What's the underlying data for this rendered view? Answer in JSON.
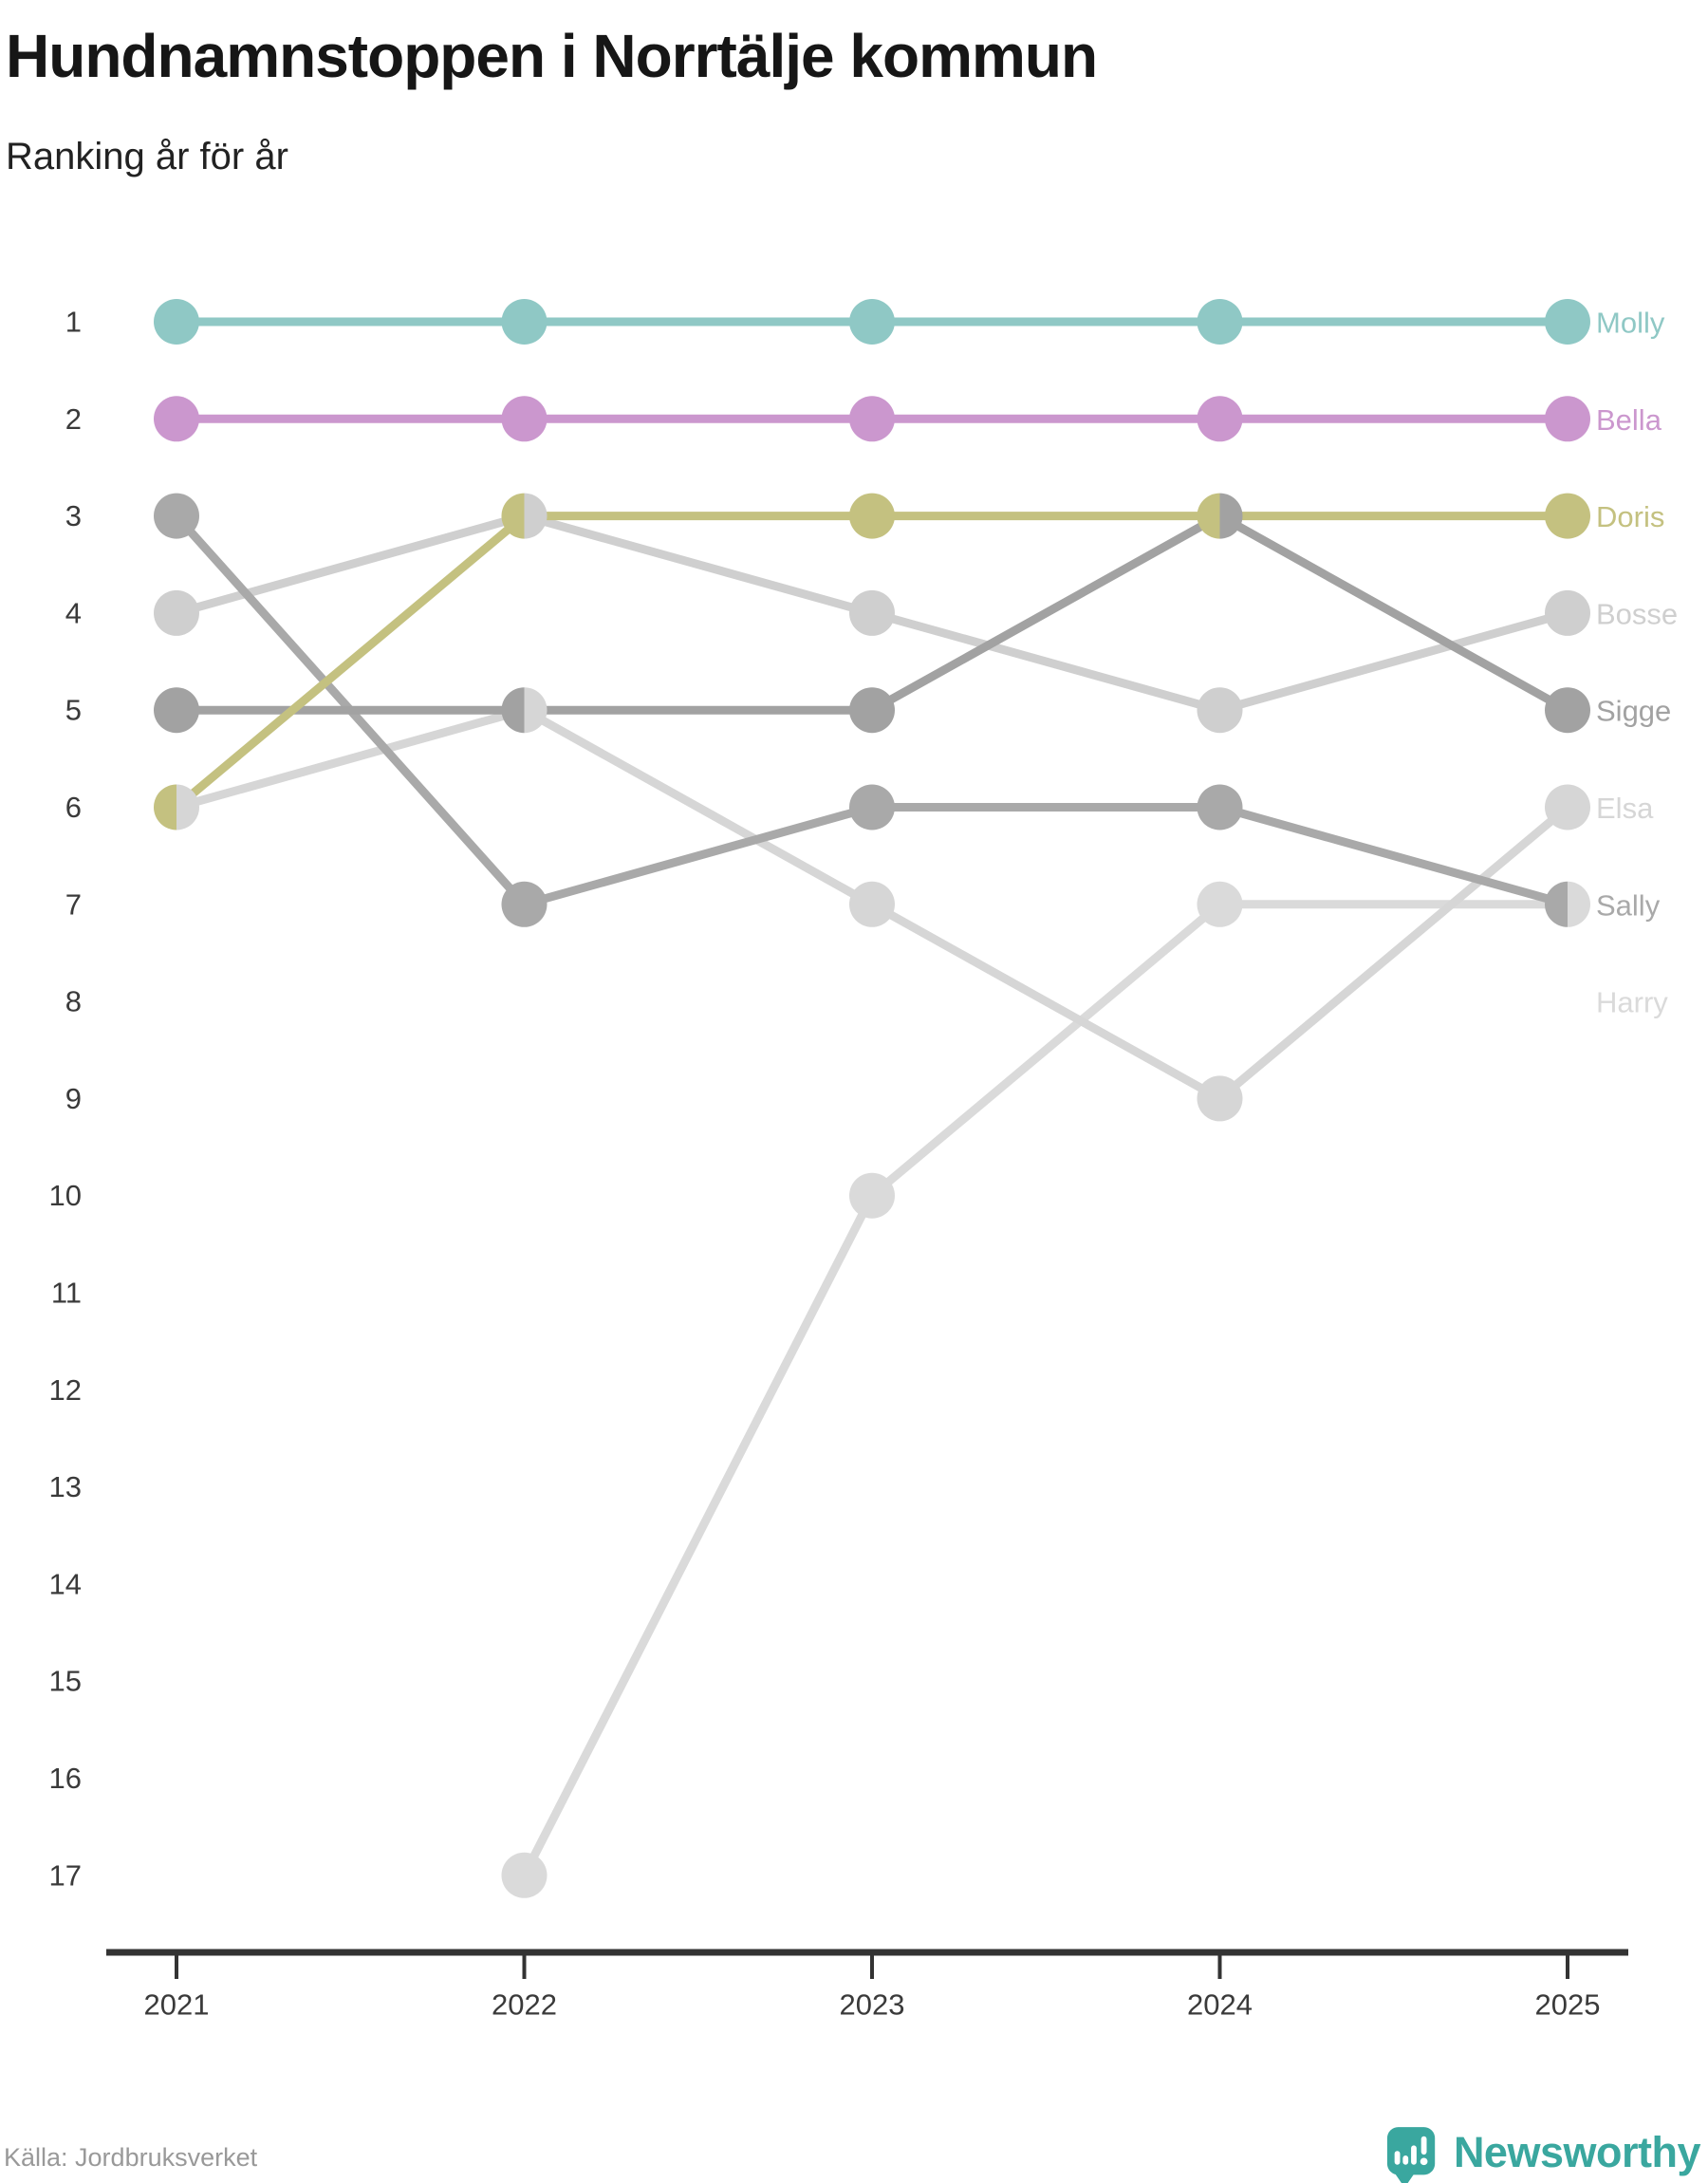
{
  "header": {
    "title": "Hundnamnstoppen i Norrtälje kommun",
    "subtitle": "Ranking år för år"
  },
  "footer": {
    "source": "Källa: Jordbruksverket",
    "brand_name": "Newsworthy",
    "brand_color": "#3aa79f"
  },
  "chart_data": {
    "type": "line",
    "variant": "bump-ranking",
    "x_labels": [
      "2021",
      "2022",
      "2023",
      "2024",
      "2025"
    ],
    "y_ticks": [
      1,
      2,
      3,
      4,
      5,
      6,
      7,
      8,
      9,
      10,
      11,
      12,
      13,
      14,
      15,
      16,
      17
    ],
    "y_axis_inverted_ranking": true,
    "grid": "off",
    "legend_position": "right-end-labels",
    "axis_color": "#333333",
    "tick_label_color": "#3a3a3a",
    "series": [
      {
        "name": "Molly",
        "color": "#8fc8c5",
        "ranks": [
          1,
          1,
          1,
          1,
          1
        ],
        "label_rank": 1
      },
      {
        "name": "Bella",
        "color": "#cb97ce",
        "ranks": [
          2,
          2,
          2,
          2,
          2
        ],
        "label_rank": 2
      },
      {
        "name": "Doris",
        "color": "#c4c180",
        "ranks": [
          6,
          3,
          3,
          3,
          3
        ],
        "label_rank": 3
      },
      {
        "name": "Bosse",
        "color": "#cfcfcf",
        "ranks": [
          4,
          3,
          4,
          5,
          4
        ],
        "label_rank": 4
      },
      {
        "name": "Sigge",
        "color": "#a2a2a2",
        "ranks": [
          5,
          5,
          5,
          3,
          5
        ],
        "label_rank": 5
      },
      {
        "name": "Elsa",
        "color": "#d6d6d6",
        "ranks": [
          6,
          5,
          7,
          9,
          6
        ],
        "label_rank": 6
      },
      {
        "name": "Sally",
        "color": "#a9a9a9",
        "ranks": [
          3,
          7,
          6,
          6,
          7
        ],
        "label_rank": 7
      },
      {
        "name": "Harry",
        "color": "#dadada",
        "ranks": [
          null,
          17,
          10,
          7,
          7
        ],
        "label_rank": 8
      }
    ],
    "draw_order": [
      "Harry",
      "Elsa",
      "Bosse",
      "Sally",
      "Sigge",
      "Doris",
      "Bella",
      "Molly"
    ]
  }
}
